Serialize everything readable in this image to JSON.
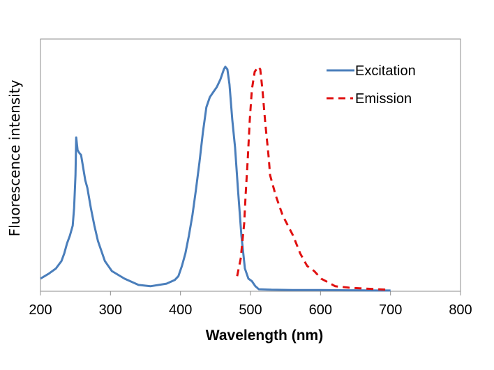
{
  "chart_data": {
    "type": "line",
    "title": "",
    "xlabel": "Wavelength (nm)",
    "ylabel": "Fluorescence intensity",
    "xlim": [
      200,
      800
    ],
    "ylim": [
      0,
      100
    ],
    "xticks": [
      200,
      300,
      400,
      500,
      600,
      700,
      800
    ],
    "xtick_labels": [
      "200",
      "300",
      "400",
      "500",
      "600",
      "700",
      "800"
    ],
    "yticks_shown": false,
    "grid": false,
    "legend_position": "top-right",
    "series": [
      {
        "name": "Excitation",
        "color": "#4a7ebb",
        "style": "solid",
        "x": [
          200,
          212,
          222,
          230,
          234,
          238,
          242,
          246,
          248,
          250,
          251,
          253,
          255,
          258,
          261,
          264,
          267,
          272,
          277,
          282,
          287,
          292,
          297,
          302,
          320,
          340,
          357,
          380,
          392,
          397,
          402,
          407,
          412,
          417,
          422,
          427,
          432,
          437,
          442,
          447,
          452,
          457,
          462,
          464,
          467,
          470,
          474,
          478,
          482,
          487,
          492,
          497,
          502,
          507,
          512,
          530,
          560,
          600,
          640,
          680,
          700
        ],
        "y": [
          5,
          7,
          9,
          12,
          15,
          19,
          22,
          26,
          33,
          46,
          61,
          56,
          55,
          54,
          49,
          44,
          41,
          33,
          26,
          20,
          16,
          12,
          10,
          8,
          5,
          2.5,
          2,
          3,
          4.5,
          6,
          10,
          15,
          22,
          30,
          40,
          51,
          63,
          73,
          77,
          79,
          81,
          84,
          88,
          89,
          88,
          82,
          68,
          57,
          41,
          22,
          9,
          5,
          4,
          2,
          0.8,
          0.6,
          0.5,
          0.5,
          0.4,
          0.3,
          0.3
        ]
      },
      {
        "name": "Emission",
        "color": "#e01010",
        "style": "dashed",
        "x": [
          481,
          486,
          491,
          493,
          496,
          499,
          502,
          506,
          511,
          514,
          517,
          521,
          526,
          528,
          536,
          546,
          561,
          571,
          581,
          591,
          601,
          611,
          621,
          641,
          661,
          681,
          696
        ],
        "y": [
          6,
          13,
          27,
          38,
          52,
          68,
          80,
          87,
          89,
          88,
          80,
          67,
          53,
          46,
          38,
          30,
          22,
          15,
          10,
          8,
          5,
          3.5,
          2,
          1.4,
          1.1,
          0.8,
          0.6
        ]
      }
    ]
  }
}
